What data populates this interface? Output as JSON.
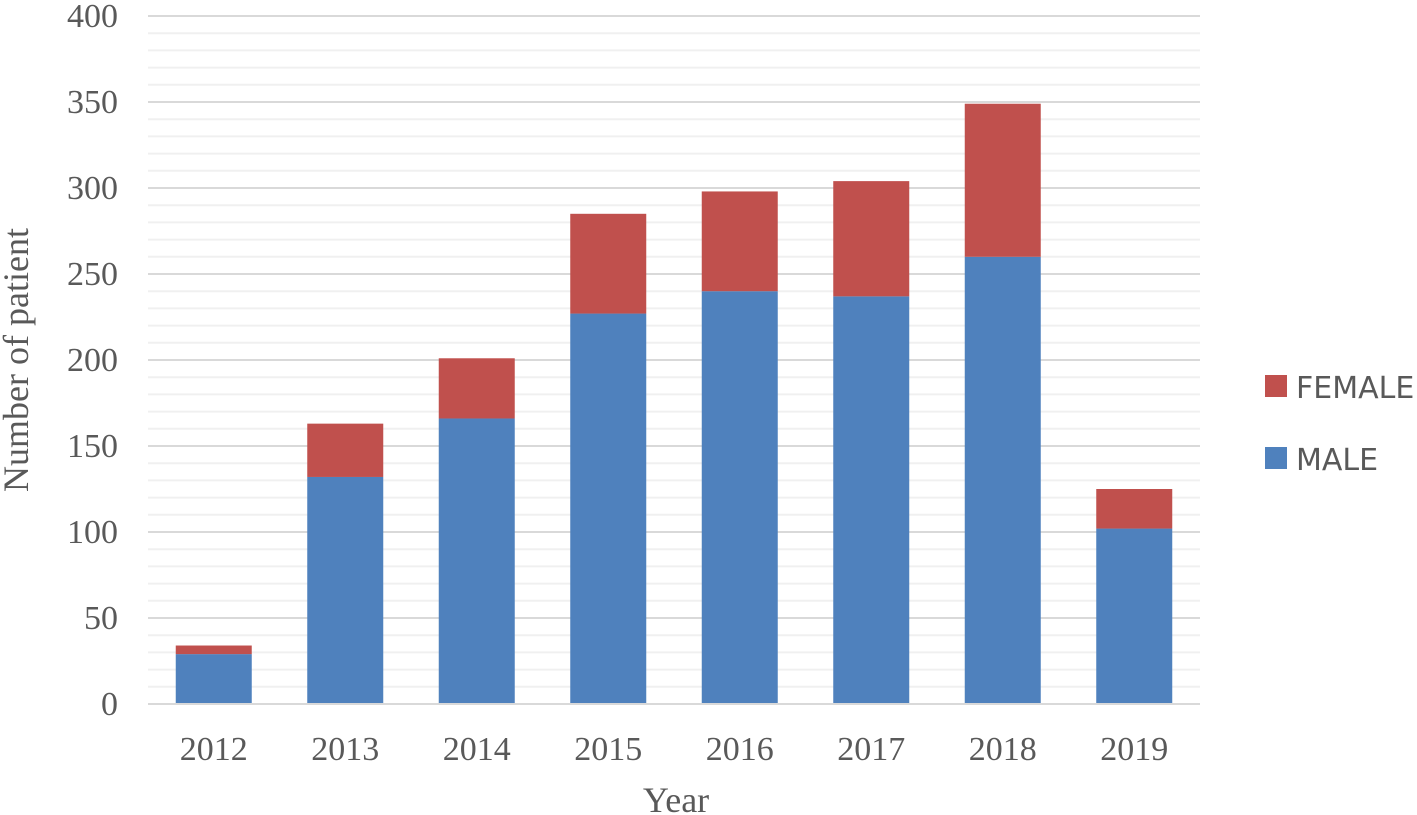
{
  "chart_data": {
    "type": "bar",
    "stacked": true,
    "categories": [
      "2012",
      "2013",
      "2014",
      "2015",
      "2016",
      "2017",
      "2018",
      "2019"
    ],
    "series": [
      {
        "name": "MALE",
        "color": "#4F81BD",
        "values": [
          29,
          132,
          166,
          227,
          240,
          237,
          260,
          102
        ]
      },
      {
        "name": "FEMALE",
        "color": "#C0504D",
        "values": [
          5,
          31,
          35,
          58,
          58,
          67,
          89,
          23
        ]
      }
    ],
    "xlabel": "Year",
    "ylabel": "Number of patient",
    "ylim": [
      0,
      400
    ],
    "yticks": [
      "0",
      "50",
      "100",
      "150",
      "200",
      "250",
      "300",
      "350",
      "400"
    ],
    "grid": true,
    "legend_position": "right"
  }
}
